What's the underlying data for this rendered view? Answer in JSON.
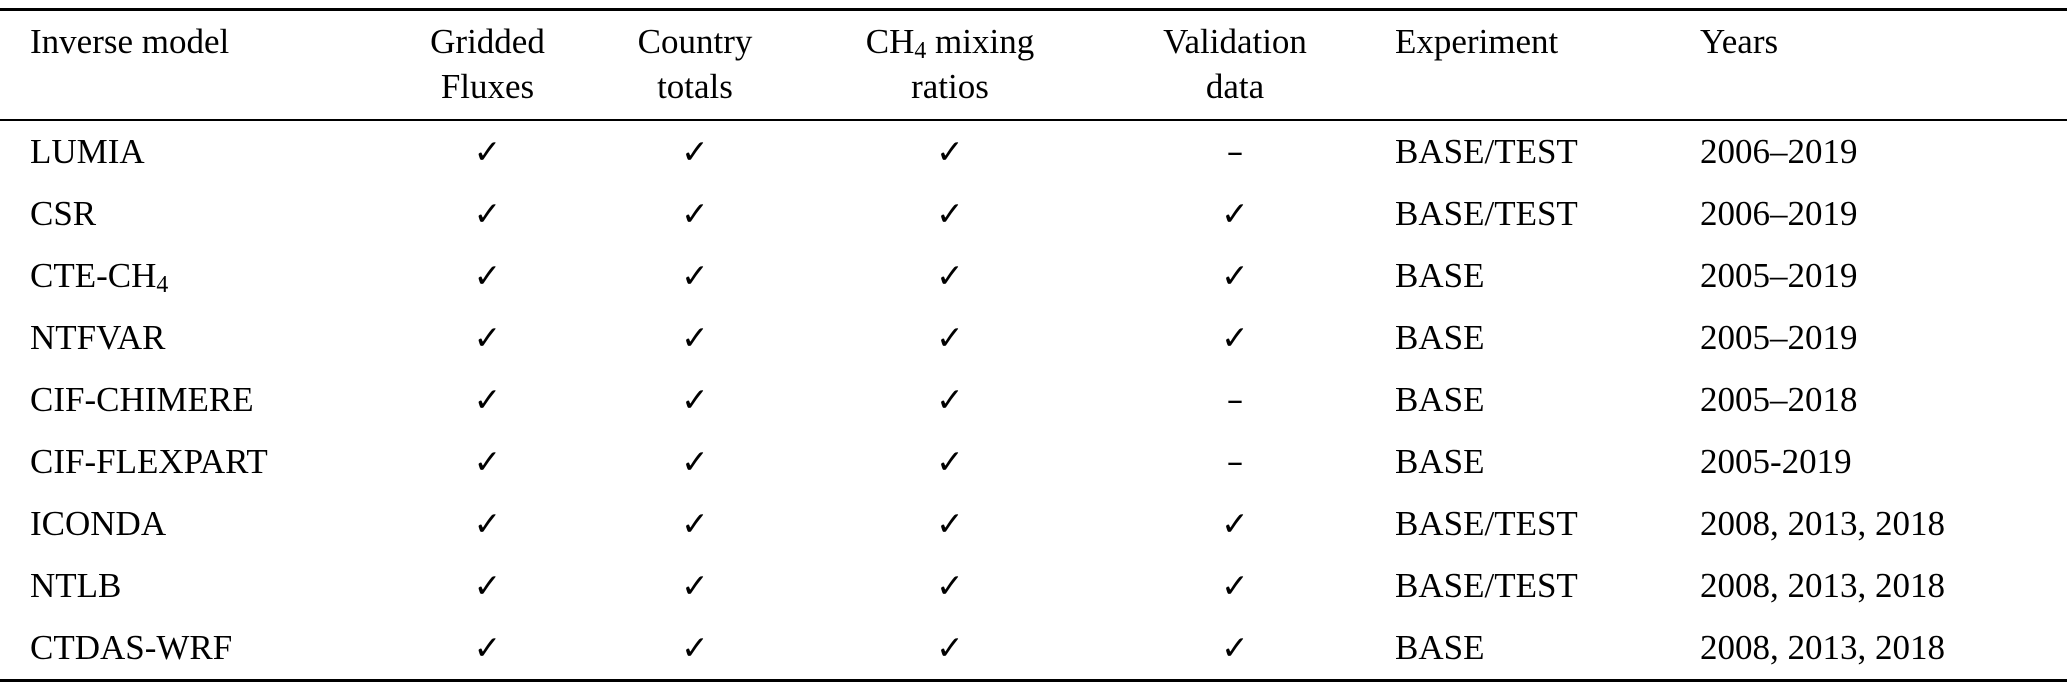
{
  "colors": {
    "text": "#000000",
    "background": "#ffffff",
    "rule": "#000000"
  },
  "table": {
    "header": {
      "inverse_model": "Inverse model",
      "gridded_line1": "Gridded",
      "gridded_line2": "Fluxes",
      "country_line1": "Country",
      "country_line2": "totals",
      "ch4_prefix": "CH",
      "ch4_sub": "4",
      "ch4_suffix": " mixing",
      "ch4_line2": "ratios",
      "validation_line1": "Validation",
      "validation_line2": "data",
      "experiment": "Experiment",
      "years": "Years"
    },
    "symbols": {
      "check": "✓",
      "dash": "–"
    },
    "rows": [
      {
        "model_main": "LUMIA",
        "model_sub": "",
        "gridded": "✓",
        "country": "✓",
        "mixing": "✓",
        "validation": "–",
        "experiment": "BASE/TEST",
        "years": "2006–2019"
      },
      {
        "model_main": "CSR",
        "model_sub": "",
        "gridded": "✓",
        "country": "✓",
        "mixing": "✓",
        "validation": "✓",
        "experiment": "BASE/TEST",
        "years": "2006–2019"
      },
      {
        "model_main": "CTE-CH",
        "model_sub": "4",
        "gridded": "✓",
        "country": "✓",
        "mixing": "✓",
        "validation": "✓",
        "experiment": "BASE",
        "years": "2005–2019"
      },
      {
        "model_main": "NTFVAR",
        "model_sub": "",
        "gridded": "✓",
        "country": "✓",
        "mixing": "✓",
        "validation": "✓",
        "experiment": "BASE",
        "years": "2005–2019"
      },
      {
        "model_main": "CIF-CHIMERE",
        "model_sub": "",
        "gridded": "✓",
        "country": "✓",
        "mixing": "✓",
        "validation": "–",
        "experiment": "BASE",
        "years": "2005–2018"
      },
      {
        "model_main": "CIF-FLEXPART",
        "model_sub": "",
        "gridded": "✓",
        "country": "✓",
        "mixing": "✓",
        "validation": "–",
        "experiment": "BASE",
        "years": "2005-2019"
      },
      {
        "model_main": "ICONDA",
        "model_sub": "",
        "gridded": "✓",
        "country": "✓",
        "mixing": "✓",
        "validation": "✓",
        "experiment": "BASE/TEST",
        "years": "2008, 2013, 2018"
      },
      {
        "model_main": "NTLB",
        "model_sub": "",
        "gridded": "✓",
        "country": "✓",
        "mixing": "✓",
        "validation": "✓",
        "experiment": "BASE/TEST",
        "years": "2008, 2013, 2018"
      },
      {
        "model_main": "CTDAS-WRF",
        "model_sub": "",
        "gridded": "✓",
        "country": "✓",
        "mixing": "✓",
        "validation": "✓",
        "experiment": "BASE",
        "years": "2008, 2013, 2018"
      }
    ]
  }
}
